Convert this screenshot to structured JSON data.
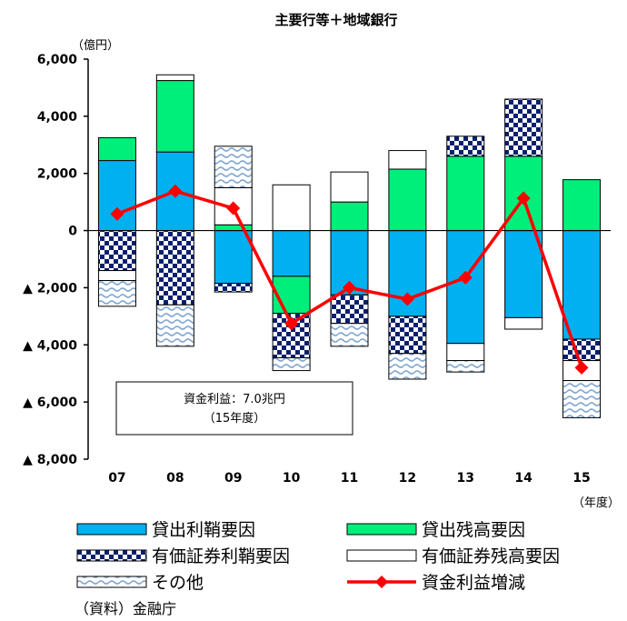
{
  "chart_data": {
    "type": "bar",
    "title": "主要行等＋地域銀行",
    "unit_label": "（億円）",
    "x_unit_label": "（年度）",
    "categories": [
      "07",
      "08",
      "09",
      "10",
      "11",
      "12",
      "13",
      "14",
      "15"
    ],
    "ylim": [
      -8000,
      6000
    ],
    "y_ticks": [
      6000,
      4000,
      2000,
      0,
      -2000,
      -4000,
      -6000,
      -8000
    ],
    "y_tick_labels": [
      "6,000",
      "4,000",
      "2,000",
      "0",
      "▲ 2,000",
      "▲ 4,000",
      "▲ 6,000",
      "▲ 8,000"
    ],
    "grid": false,
    "series": [
      {
        "name": "貸出利鞘要因",
        "kind": "bar",
        "color": "#00b0f0",
        "pattern": "solid",
        "values": [
          2450,
          2750,
          -1850,
          -1600,
          -2250,
          -3000,
          -3950,
          -3050,
          -3800
        ]
      },
      {
        "name": "貸出残高要因",
        "kind": "bar",
        "color": "#00ee7a",
        "pattern": "solid",
        "values": [
          800,
          2500,
          200,
          -1300,
          1000,
          2150,
          2600,
          2600,
          1780
        ]
      },
      {
        "name": "有価証券利鞘要因",
        "kind": "bar",
        "color": "#0a1f6e",
        "pattern": "check",
        "values": [
          -1400,
          -2600,
          -300,
          -1550,
          -1000,
          -1300,
          700,
          2000,
          -750
        ]
      },
      {
        "name": "有価証券残高要因",
        "kind": "bar",
        "color": "#ffffff",
        "pattern": "white",
        "values": [
          -350,
          200,
          1300,
          1600,
          1050,
          650,
          -600,
          -400,
          -700
        ]
      },
      {
        "name": "その他",
        "kind": "bar",
        "color": "#8fb0d6",
        "pattern": "wave",
        "values": [
          -900,
          -1450,
          1450,
          -450,
          -800,
          -900,
          -400,
          0,
          -1300
        ]
      },
      {
        "name": "資金利益増減",
        "kind": "line",
        "color": "#ff0000",
        "values": [
          580,
          1380,
          780,
          -3250,
          -2000,
          -2400,
          -1650,
          1130,
          -4800
        ]
      }
    ],
    "legend_placement": "bottom",
    "annotation": {
      "line1": "資金利益：7.0兆円",
      "line2": "（15年度）"
    },
    "source": "（資料）金融庁"
  }
}
